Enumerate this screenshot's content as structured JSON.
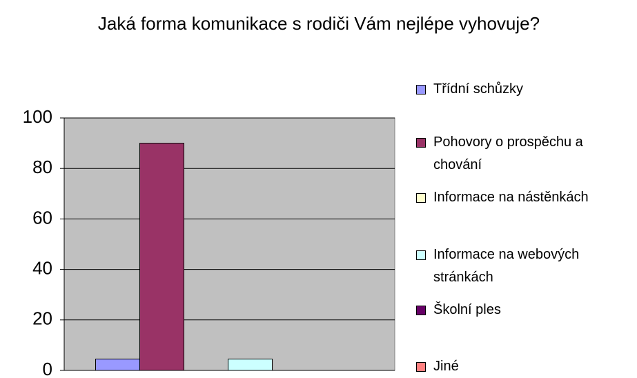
{
  "chart_data": {
    "type": "bar",
    "title": "Jaká forma komunikace s rodiči Vám nejlépe vyhovuje?",
    "categories": [
      null
    ],
    "series": [
      {
        "name": "Třídní schůzky",
        "color": "#9999ff",
        "values": [
          4.5
        ]
      },
      {
        "name": "Pohovory o prospěchu a chování",
        "color": "#993366",
        "values": [
          90
        ]
      },
      {
        "name": "Informace na nástěnkách",
        "color": "#ffffcc",
        "values": [
          0
        ]
      },
      {
        "name": "Informace na webových stránkách",
        "color": "#ccffff",
        "values": [
          4.5
        ]
      },
      {
        "name": "Školní ples",
        "color": "#660066",
        "values": [
          0
        ]
      },
      {
        "name": "Jiné",
        "color": "#ff8080",
        "values": [
          0
        ]
      }
    ],
    "ylim": [
      0,
      100
    ],
    "yticks": [
      0,
      20,
      40,
      60,
      80,
      100
    ],
    "grid": true,
    "legend": "right"
  }
}
